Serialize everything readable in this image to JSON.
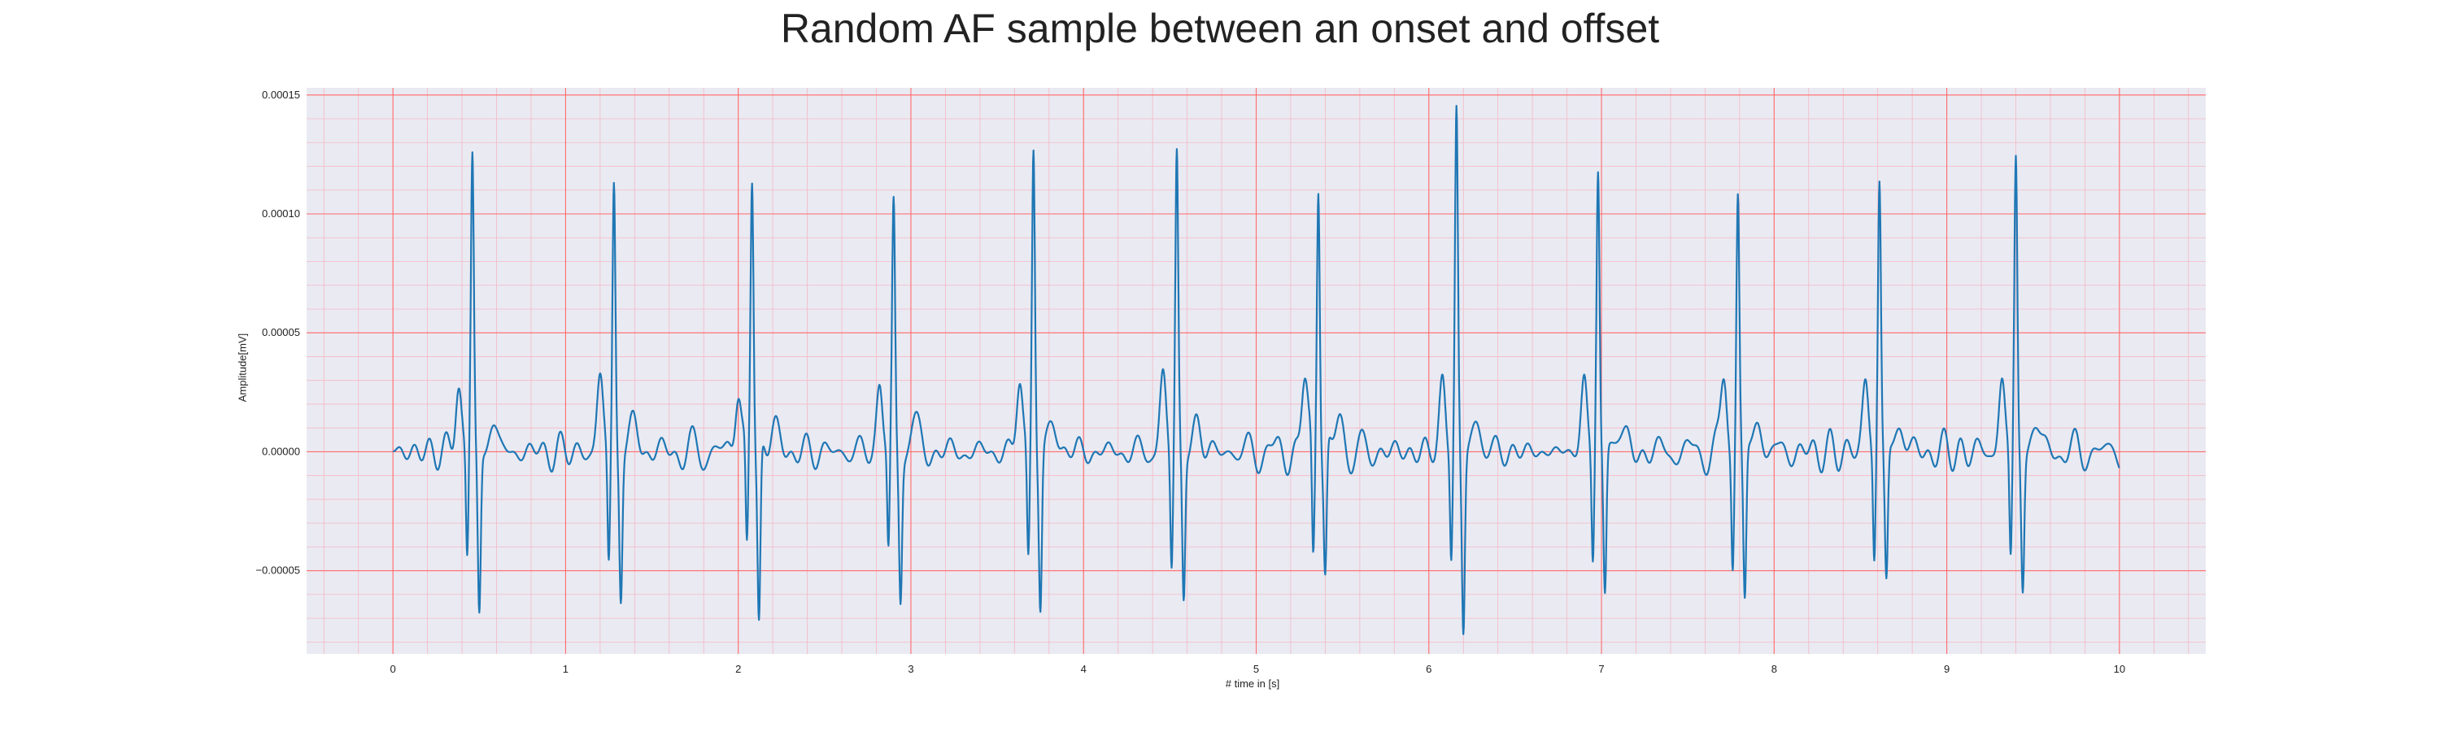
{
  "chart_data": {
    "type": "line",
    "title": "Random AF sample between an onset and offset",
    "xlabel": "# time in [s]",
    "ylabel": "Amplitude[mV]",
    "xlim": [
      -0.5,
      10.5
    ],
    "ylim": [
      -8.5e-05,
      0.000153
    ],
    "xticks": [
      0,
      1,
      2,
      3,
      4,
      5,
      6,
      7,
      8,
      9,
      10
    ],
    "xtick_labels": [
      "0",
      "1",
      "2",
      "3",
      "4",
      "5",
      "6",
      "7",
      "8",
      "9",
      "10"
    ],
    "yticks": [
      -5e-05,
      0.0,
      5e-05,
      0.0001,
      0.00015
    ],
    "ytick_labels": [
      "−0.00005",
      "0.00000",
      "0.00005",
      "0.00010",
      "0.00015"
    ],
    "grid": true,
    "minor_grid": true,
    "colors": {
      "line": "#1f77b4",
      "background": "#eaeaf2",
      "major_grid": "#ff6b6b",
      "minor_grid": "#f4b8c4"
    },
    "qrs_beats": [
      {
        "t": 0.46,
        "peak": 0.000123,
        "s_depth": -6.8e-05
      },
      {
        "t": 1.28,
        "peak": 0.000114,
        "s_depth": -6e-05
      },
      {
        "t": 2.08,
        "peak": 0.000115,
        "s_depth": -7.4e-05
      },
      {
        "t": 2.9,
        "peak": 0.0001,
        "s_depth": -5.8e-05
      },
      {
        "t": 3.71,
        "peak": 0.000129,
        "s_depth": -6.5e-05
      },
      {
        "t": 4.54,
        "peak": 0.000127,
        "s_depth": -6.3e-05
      },
      {
        "t": 5.36,
        "peak": 0.00012,
        "s_depth": -5.5e-05
      },
      {
        "t": 6.16,
        "peak": 0.000142,
        "s_depth": -7.4e-05
      },
      {
        "t": 6.98,
        "peak": 0.000117,
        "s_depth": -6.1e-05
      },
      {
        "t": 7.79,
        "peak": 0.00011,
        "s_depth": -6.5e-05
      },
      {
        "t": 8.61,
        "peak": 0.000113,
        "s_depth": -5.5e-05
      },
      {
        "t": 9.4,
        "peak": 0.000122,
        "s_depth": -5.6e-05
      }
    ],
    "baseline_ripple_amplitude": 1.8e-05,
    "t_range": [
      0,
      10
    ]
  }
}
